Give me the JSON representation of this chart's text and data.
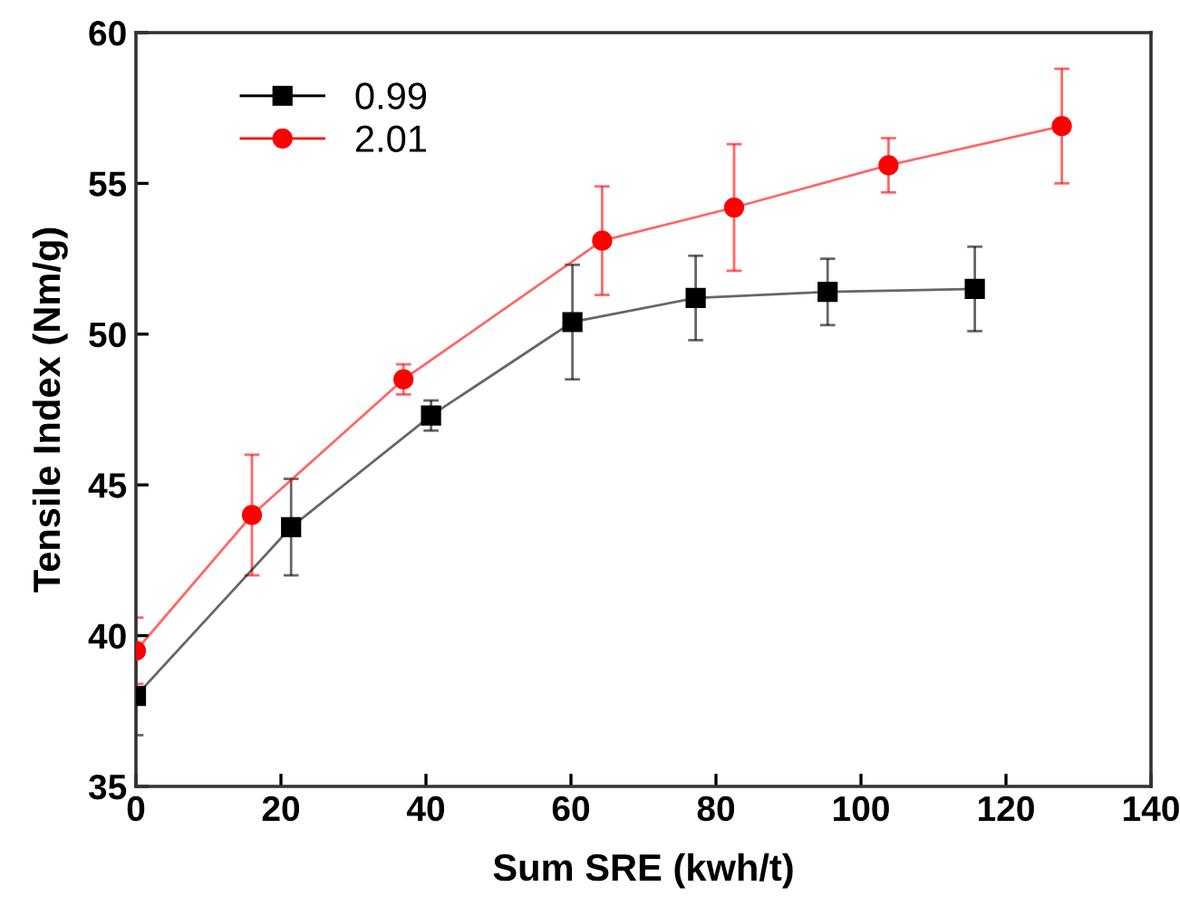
{
  "chart_data": {
    "type": "line",
    "xlabel": "Sum SRE (kwh/t)",
    "ylabel": "Tensile Index (Nm/g)",
    "xlim": [
      0,
      140
    ],
    "xticks": [
      0,
      20,
      40,
      60,
      80,
      100,
      120,
      140
    ],
    "ylim": [
      35,
      60
    ],
    "yticks": [
      35,
      40,
      45,
      50,
      55,
      60
    ],
    "grid": false,
    "legend": "top left",
    "line_style": "solid",
    "series": [
      {
        "name": "0.99",
        "color": "#000000",
        "marker": "square",
        "x": [
          0,
          21.4,
          40.7,
          60.2,
          77.2,
          95.4,
          115.7
        ],
        "values": [
          38.0,
          43.6,
          47.3,
          50.4,
          51.2,
          51.4,
          51.5
        ],
        "errors": [
          1.3,
          1.6,
          0.5,
          1.9,
          1.4,
          1.1,
          1.4
        ]
      },
      {
        "name": "2.01",
        "color": "#ff0000",
        "marker": "circle",
        "x": [
          0,
          16.0,
          36.9,
          64.3,
          82.5,
          103.8,
          127.7
        ],
        "values": [
          39.5,
          44.0,
          48.5,
          53.1,
          54.2,
          55.6,
          56.9
        ],
        "errors": [
          1.1,
          2.0,
          0.5,
          1.8,
          2.1,
          0.9,
          1.9
        ]
      }
    ]
  }
}
